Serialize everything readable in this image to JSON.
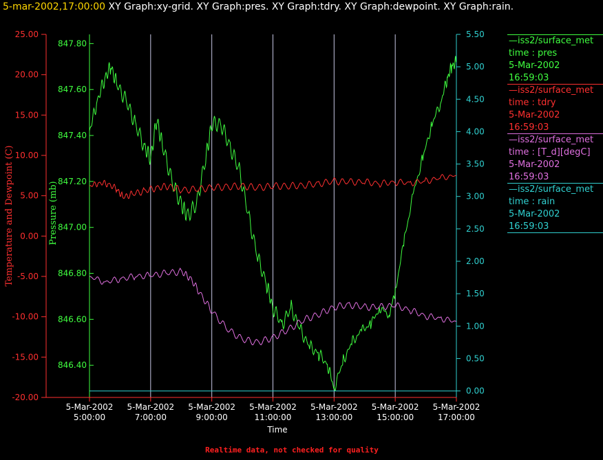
{
  "header": {
    "timestamp": "5-mar-2002,17:00:00",
    "graphs": "XY Graph:xy-grid.  XY Graph:pres.  XY Graph:tdry.  XY Graph:dewpoint.  XY Graph:rain."
  },
  "footer": "Realtime data, not checked for quality",
  "colors": {
    "temp_axis": "#ff3030",
    "pres_axis": "#40ff40",
    "rain_axis": "#30d0d0",
    "grid": "#c8c8e6",
    "dewpoint": "#e070e0"
  },
  "legend": [
    {
      "line": "—iss2/surface_met",
      "var": "time : pres",
      "date": "5-Mar-2002",
      "time": "16:59:03",
      "color": "#40ff40"
    },
    {
      "line": "—iss2/surface_met",
      "var": "time : tdry",
      "date": "5-Mar-2002",
      "time": "16:59:03",
      "color": "#ff3030"
    },
    {
      "line": "—iss2/surface_met",
      "var": "time : [T_d][degC]",
      "date": "5-Mar-2002",
      "time": "16:59:03",
      "color": "#e070e0"
    },
    {
      "line": "—iss2/surface_met",
      "var": "time : rain",
      "date": "5-Mar-2002",
      "time": "16:59:03",
      "color": "#30d0d0"
    }
  ],
  "chart_data": {
    "type": "line",
    "xlabel": "Time",
    "x_ticks": [
      {
        "date": "5-Mar-2002",
        "time": "5:00:00",
        "hour": 5
      },
      {
        "date": "5-Mar-2002",
        "time": "7:00:00",
        "hour": 7
      },
      {
        "date": "5-Mar-2002",
        "time": "9:00:00",
        "hour": 9
      },
      {
        "date": "5-Mar-2002",
        "time": "11:00:00",
        "hour": 11
      },
      {
        "date": "5-Mar-2002",
        "time": "13:00:00",
        "hour": 13
      },
      {
        "date": "5-Mar-2002",
        "time": "15:00:00",
        "hour": 15
      },
      {
        "date": "5-Mar-2002",
        "time": "17:00:00",
        "hour": 17
      }
    ],
    "x_range_hours": [
      5,
      17
    ],
    "grid": "vertical",
    "axes": {
      "temperature": {
        "label": "Temperature and Dewpoint (C)",
        "range": [
          -20,
          25
        ],
        "ticks": [
          "25.00",
          "20.00",
          "15.00",
          "10.00",
          "5.00",
          "0.00",
          "-5.00",
          "-10.00",
          "-15.00",
          "-20.00"
        ]
      },
      "pressure": {
        "label": "Pressure (mb)",
        "range": [
          846.26,
          847.84
        ],
        "ticks": [
          "847.80",
          "847.60",
          "847.40",
          "847.20",
          "847.00",
          "846.80",
          "846.60",
          "846.40"
        ]
      },
      "rain": {
        "label": "",
        "range": [
          -0.1,
          5.5
        ],
        "ticks": [
          "5.50",
          "5.00",
          "4.50",
          "4.00",
          "3.50",
          "3.00",
          "2.50",
          "2.00",
          "1.50",
          "1.00",
          "0.50",
          "0.00"
        ]
      }
    },
    "series": [
      {
        "name": "time : pres",
        "axis": "pressure",
        "x_hours": [
          5.0,
          5.25,
          5.5,
          5.7,
          5.9,
          6.2,
          6.5,
          6.8,
          7.0,
          7.2,
          7.4,
          7.7,
          8.0,
          8.2,
          8.5,
          8.8,
          9.0,
          9.3,
          9.6,
          9.9,
          10.2,
          10.5,
          10.8,
          11.0,
          11.3,
          11.6,
          11.9,
          12.2,
          12.5,
          12.8,
          13.0,
          13.3,
          13.6,
          13.9,
          14.2,
          14.5,
          14.8,
          15.0,
          15.3,
          15.6,
          15.9,
          16.2,
          16.5,
          16.7,
          16.85,
          17.0
        ],
        "values": [
          847.42,
          847.55,
          847.65,
          847.7,
          847.62,
          847.55,
          847.45,
          847.35,
          847.3,
          847.47,
          847.35,
          847.2,
          847.1,
          847.05,
          847.1,
          847.3,
          847.45,
          847.45,
          847.35,
          847.25,
          847.05,
          846.87,
          846.75,
          846.65,
          846.58,
          846.65,
          846.55,
          846.48,
          846.45,
          846.4,
          846.3,
          846.42,
          846.5,
          846.55,
          846.58,
          846.65,
          846.62,
          846.72,
          846.95,
          847.15,
          847.3,
          847.45,
          847.55,
          847.65,
          847.7,
          847.72
        ]
      },
      {
        "name": "time : tdry",
        "axis": "temperature",
        "x_hours": [
          5.0,
          5.3,
          5.6,
          5.9,
          6.1,
          6.4,
          6.8,
          7.2,
          7.6,
          8.0,
          8.5,
          9.0,
          9.5,
          10.0,
          10.5,
          11.0,
          11.5,
          12.0,
          12.5,
          13.0,
          13.5,
          14.0,
          14.5,
          15.0,
          15.5,
          16.0,
          16.5,
          17.0
        ],
        "values": [
          6.2,
          6.6,
          6.5,
          5.8,
          4.8,
          5.2,
          5.6,
          6.0,
          6.2,
          5.7,
          5.8,
          6.0,
          6.1,
          6.2,
          6.0,
          6.2,
          6.2,
          6.3,
          6.5,
          6.8,
          6.7,
          6.7,
          6.5,
          6.7,
          6.6,
          6.8,
          7.2,
          7.5
        ]
      },
      {
        "name": "time : [T_d][degC]",
        "axis": "temperature",
        "x_hours": [
          5.0,
          5.5,
          6.0,
          6.5,
          7.0,
          7.5,
          8.0,
          8.3,
          8.6,
          9.0,
          9.5,
          10.0,
          10.5,
          11.0,
          11.5,
          12.0,
          12.5,
          13.0,
          13.5,
          14.0,
          14.5,
          15.0,
          15.5,
          16.0,
          16.5,
          17.0
        ],
        "values": [
          -5.0,
          -5.7,
          -5.3,
          -5.0,
          -4.9,
          -4.6,
          -4.4,
          -5.2,
          -7.0,
          -9.3,
          -11.5,
          -12.8,
          -13.2,
          -12.6,
          -11.6,
          -10.4,
          -9.7,
          -8.8,
          -8.5,
          -8.8,
          -8.8,
          -8.6,
          -9.2,
          -9.9,
          -10.2,
          -10.6
        ]
      },
      {
        "name": "time : rain",
        "axis": "rain",
        "x_hours": [
          5.0,
          17.0
        ],
        "values": [
          0.0,
          0.0
        ]
      }
    ]
  }
}
